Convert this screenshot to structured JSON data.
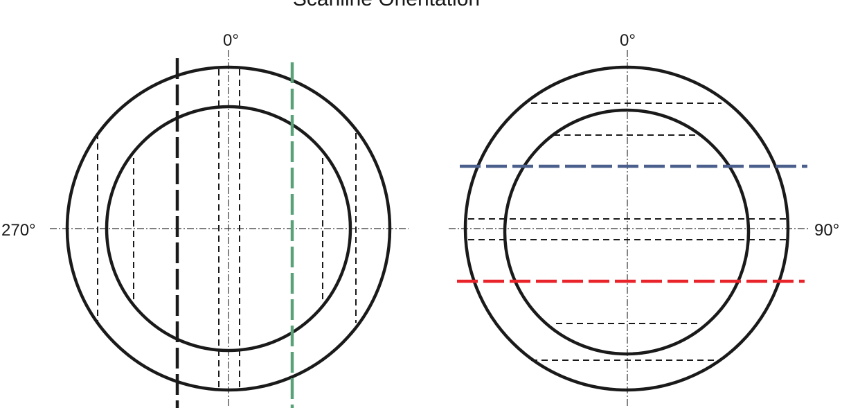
{
  "title": "Scanline Orientation",
  "left_diagram": {
    "top_label": "0°",
    "side_label": "270°"
  },
  "right_diagram": {
    "top_label": "0°",
    "side_label": "90°"
  },
  "colors": {
    "ring": "#1a1a1a",
    "black_scanline": "#1a1a1a",
    "green_scanline": "#5aa17a",
    "blue_scanline": "#4a5f8c",
    "red_scanline": "#e8232a"
  }
}
